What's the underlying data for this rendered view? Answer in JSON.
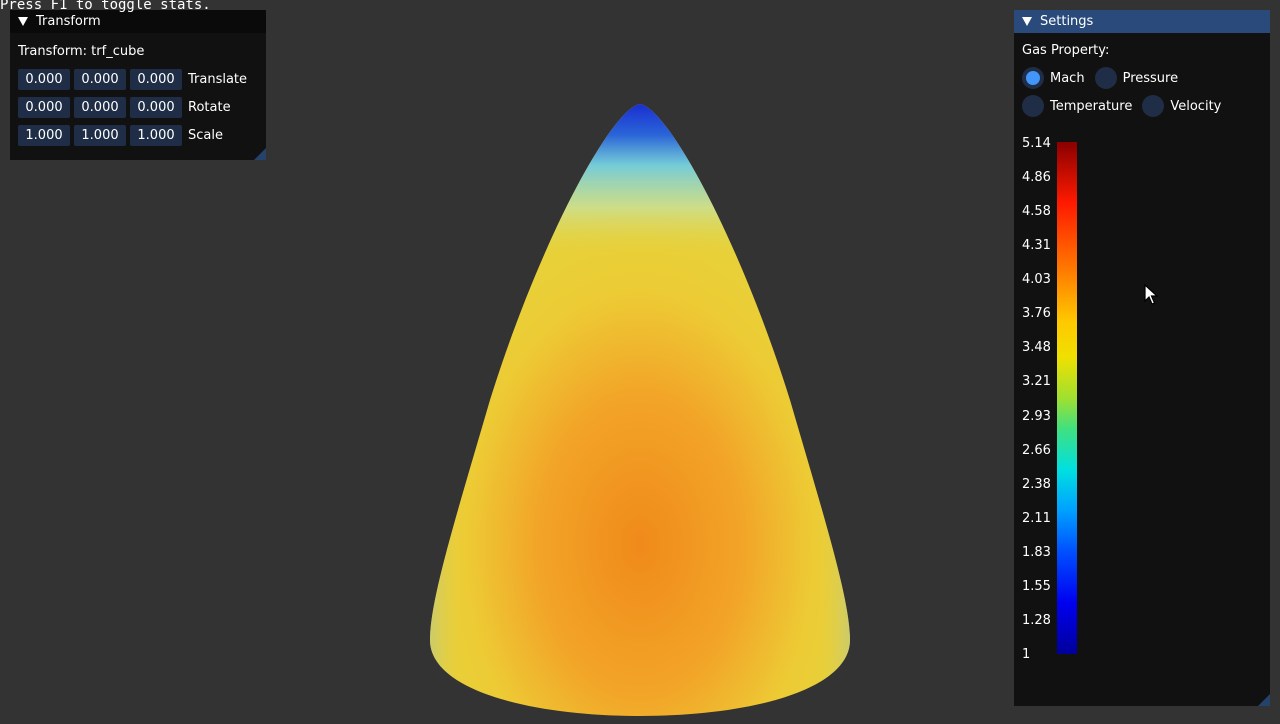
{
  "stats_hint": "Press F1 to toggle stats.",
  "transform_window": {
    "title": "Transform",
    "transform_label": "Transform: trf_cube",
    "rows": [
      {
        "label": "Translate",
        "values": [
          "0.000",
          "0.000",
          "0.000"
        ]
      },
      {
        "label": "Rotate",
        "values": [
          "0.000",
          "0.000",
          "0.000"
        ]
      },
      {
        "label": "Scale",
        "values": [
          "1.000",
          "1.000",
          "1.000"
        ]
      }
    ]
  },
  "settings_window": {
    "title": "Settings",
    "gas_property_label": "Gas Property:",
    "options": [
      {
        "label": "Mach",
        "selected": true
      },
      {
        "label": "Pressure",
        "selected": false
      },
      {
        "label": "Temperature",
        "selected": false
      },
      {
        "label": "Velocity",
        "selected": false
      }
    ],
    "colorbar_ticks": [
      "5.14",
      "4.86",
      "4.58",
      "4.31",
      "4.03",
      "3.76",
      "3.48",
      "3.21",
      "2.93",
      "2.66",
      "2.38",
      "2.11",
      "1.83",
      "1.55",
      "1.28",
      "1"
    ]
  },
  "colors": {
    "background": "#333333",
    "window_bg": "#0f0f0f",
    "active_title": "#294a7a",
    "frame_bg": "#1f2e46",
    "radio_selected": "#4296fa"
  }
}
